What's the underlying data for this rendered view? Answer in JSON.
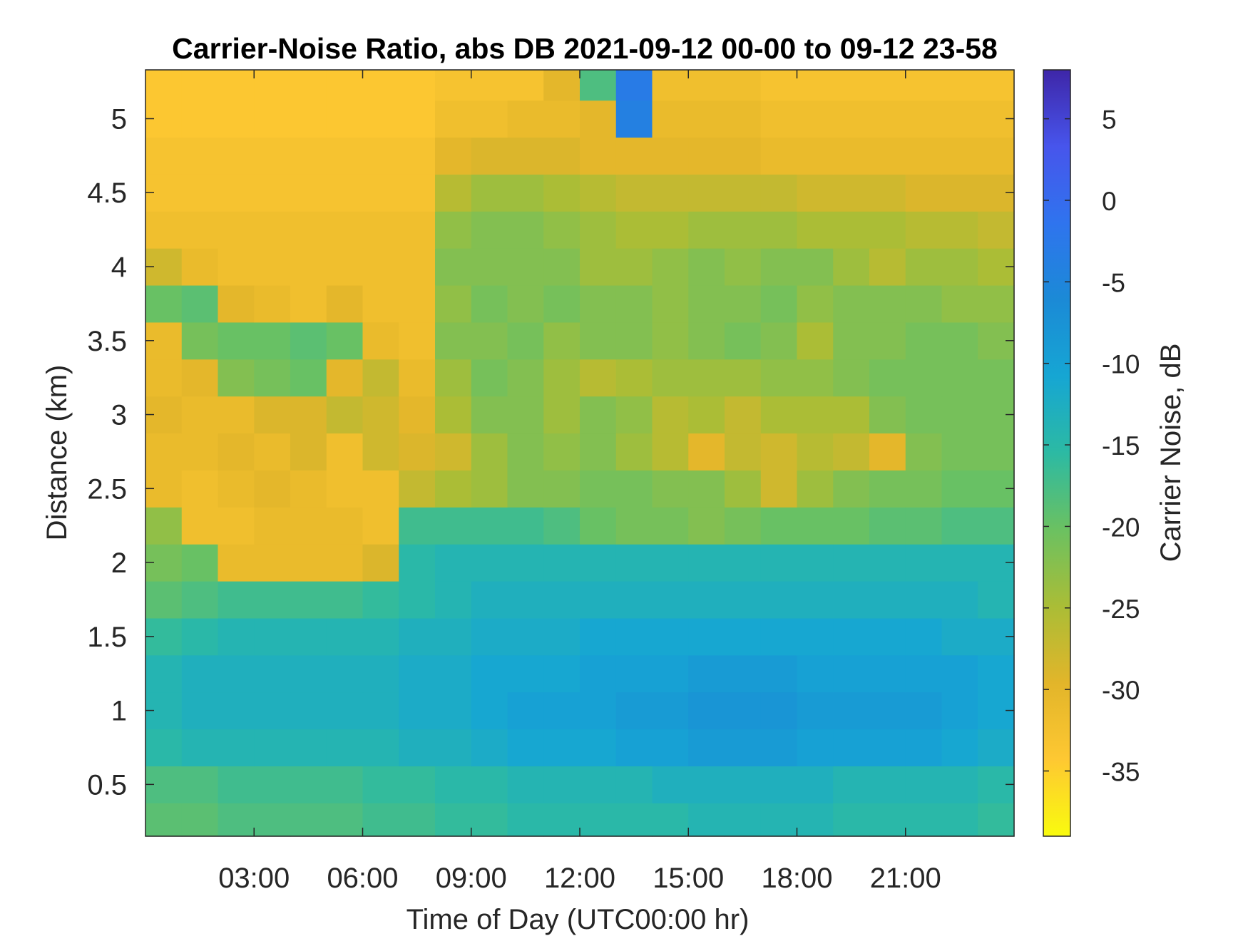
{
  "chart_data": {
    "type": "heatmap",
    "title": "Carrier-Noise Ratio, abs DB 2021-09-12 00-00 to 09-12 23-58",
    "xlabel": "Time of Day (UTC00:00 hr)",
    "ylabel": "Distance (km)",
    "colorbar_label": "Carrier Noise, dB",
    "x_tick_labels": [
      "03:00",
      "06:00",
      "09:00",
      "12:00",
      "15:00",
      "18:00",
      "21:00"
    ],
    "x_ticks_hours": [
      3,
      6,
      9,
      12,
      15,
      18,
      21
    ],
    "xlim_hours": [
      0,
      24
    ],
    "y_ticks": [
      0.5,
      1,
      1.5,
      2,
      2.5,
      3,
      3.5,
      4,
      4.5,
      5
    ],
    "y_tick_labels": [
      "0.5",
      "1",
      "1.5",
      "2",
      "2.5",
      "3",
      "3.5",
      "4",
      "4.5",
      "5"
    ],
    "ylim": [
      0.15,
      5.33
    ],
    "colorbar_ticks": [
      5,
      0,
      -5,
      -10,
      -15,
      -20,
      -25,
      -30,
      -35
    ],
    "colorbar_tick_labels": [
      "5",
      "0",
      "-5",
      "-10",
      "-15",
      "-20",
      "-25",
      "-30",
      "-35"
    ],
    "clim": [
      -39,
      8
    ],
    "colormap": [
      "#f9fb0e",
      "#fec832",
      "#e2b52a",
      "#aabd36",
      "#6bc161",
      "#2cbaa3",
      "#16a6d3",
      "#1b8ad6",
      "#2f74ee",
      "#4755ec",
      "#3e26a8"
    ],
    "grid": false,
    "legend": "none",
    "x_hours": [
      0.5,
      1.5,
      2.5,
      3.5,
      4.5,
      5.5,
      6.5,
      7.5,
      8.5,
      9.5,
      10.5,
      11.5,
      12.5,
      13.5,
      14.5,
      15.5,
      16.5,
      17.5,
      18.5,
      19.5,
      20.5,
      21.5,
      22.5,
      23.5
    ],
    "y_km": [
      0.25,
      0.5,
      0.75,
      1.0,
      1.25,
      1.5,
      1.75,
      2.0,
      2.25,
      2.5,
      2.75,
      3.0,
      3.25,
      3.5,
      3.75,
      4.0,
      4.25,
      4.5,
      4.75,
      5.0,
      5.25
    ],
    "z_db": [
      [
        -19,
        -19,
        -18,
        -18,
        -18,
        -18,
        -17,
        -17,
        -16,
        -16,
        -15,
        -15,
        -15,
        -15,
        -15,
        -14,
        -14,
        -14,
        -14,
        -15,
        -15,
        -15,
        -15,
        -16
      ],
      [
        -18,
        -18,
        -17,
        -17,
        -17,
        -17,
        -16,
        -16,
        -15,
        -15,
        -14,
        -14,
        -14,
        -14,
        -13,
        -13,
        -13,
        -13,
        -13,
        -14,
        -14,
        -14,
        -14,
        -15
      ],
      [
        -15,
        -14,
        -14,
        -14,
        -14,
        -14,
        -14,
        -13,
        -13,
        -12,
        -11,
        -11,
        -11,
        -10,
        -10,
        -9,
        -9,
        -9,
        -10,
        -10,
        -10,
        -10,
        -11,
        -12
      ],
      [
        -14,
        -13,
        -13,
        -13,
        -13,
        -13,
        -13,
        -12,
        -12,
        -11,
        -10,
        -10,
        -10,
        -9,
        -9,
        -8,
        -8,
        -8,
        -9,
        -9,
        -9,
        -9,
        -10,
        -11
      ],
      [
        -14,
        -13,
        -13,
        -13,
        -13,
        -13,
        -13,
        -12,
        -12,
        -11,
        -11,
        -11,
        -10,
        -10,
        -10,
        -9,
        -9,
        -9,
        -10,
        -10,
        -10,
        -10,
        -10,
        -11
      ],
      [
        -16,
        -15,
        -14,
        -14,
        -14,
        -14,
        -14,
        -13,
        -13,
        -12,
        -12,
        -12,
        -11,
        -11,
        -11,
        -11,
        -11,
        -11,
        -11,
        -11,
        -11,
        -11,
        -12,
        -12
      ],
      [
        -19,
        -18,
        -17,
        -17,
        -17,
        -17,
        -16,
        -15,
        -14,
        -13,
        -13,
        -13,
        -13,
        -13,
        -13,
        -13,
        -13,
        -13,
        -13,
        -13,
        -13,
        -13,
        -13,
        -14
      ],
      [
        -21,
        -20,
        -31,
        -31,
        -31,
        -31,
        -29,
        -15,
        -14,
        -14,
        -14,
        -14,
        -14,
        -14,
        -14,
        -14,
        -14,
        -14,
        -14,
        -14,
        -14,
        -14,
        -14,
        -14
      ],
      [
        -23,
        -32,
        -32,
        -31,
        -31,
        -31,
        -32,
        -17,
        -17,
        -17,
        -17,
        -18,
        -20,
        -21,
        -21,
        -22,
        -21,
        -20,
        -20,
        -20,
        -19,
        -19,
        -18,
        -18
      ],
      [
        -31,
        -32,
        -31,
        -30,
        -31,
        -32,
        -32,
        -27,
        -25,
        -24,
        -22,
        -22,
        -21,
        -21,
        -22,
        -22,
        -24,
        -28,
        -24,
        -22,
        -21,
        -21,
        -20,
        -20
      ],
      [
        -31,
        -31,
        -30,
        -31,
        -29,
        -32,
        -28,
        -29,
        -28,
        -24,
        -22,
        -23,
        -22,
        -24,
        -26,
        -30,
        -27,
        -28,
        -26,
        -27,
        -30,
        -22,
        -21,
        -21
      ],
      [
        -30,
        -31,
        -31,
        -29,
        -29,
        -27,
        -28,
        -30,
        -25,
        -22,
        -22,
        -24,
        -22,
        -23,
        -26,
        -25,
        -27,
        -25,
        -25,
        -25,
        -22,
        -21,
        -21,
        -21
      ],
      [
        -31,
        -30,
        -22,
        -21,
        -20,
        -30,
        -27,
        -31,
        -24,
        -21,
        -22,
        -24,
        -26,
        -25,
        -24,
        -24,
        -24,
        -23,
        -23,
        -22,
        -21,
        -21,
        -21,
        -21
      ],
      [
        -31,
        -21,
        -20,
        -20,
        -19,
        -20,
        -31,
        -32,
        -22,
        -22,
        -21,
        -23,
        -22,
        -22,
        -23,
        -22,
        -21,
        -22,
        -25,
        -22,
        -22,
        -21,
        -21,
        -22
      ],
      [
        -20,
        -19,
        -30,
        -31,
        -32,
        -30,
        -32,
        -32,
        -23,
        -21,
        -22,
        -21,
        -22,
        -22,
        -23,
        -22,
        -22,
        -21,
        -23,
        -22,
        -22,
        -22,
        -23,
        -23
      ],
      [
        -28,
        -31,
        -32,
        -32,
        -32,
        -32,
        -32,
        -32,
        -22,
        -22,
        -22,
        -22,
        -24,
        -24,
        -23,
        -22,
        -23,
        -22,
        -22,
        -24,
        -26,
        -24,
        -24,
        -25
      ],
      [
        -32,
        -32,
        -32,
        -32,
        -32,
        -32,
        -32,
        -32,
        -23,
        -22,
        -22,
        -23,
        -24,
        -25,
        -25,
        -24,
        -24,
        -24,
        -25,
        -25,
        -25,
        -26,
        -26,
        -27
      ],
      [
        -33,
        -33,
        -33,
        -33,
        -33,
        -33,
        -33,
        -33,
        -26,
        -24,
        -24,
        -25,
        -26,
        -27,
        -27,
        -27,
        -27,
        -27,
        -28,
        -28,
        -28,
        -29,
        -29,
        -29
      ],
      [
        -33,
        -33,
        -33,
        -33,
        -33,
        -33,
        -33,
        -33,
        -30,
        -29,
        -29,
        -29,
        -30,
        -30,
        -30,
        -30,
        -30,
        -31,
        -31,
        -31,
        -31,
        -31,
        -31,
        -31
      ],
      [
        -34,
        -34,
        -34,
        -34,
        -34,
        -34,
        -34,
        -34,
        -32,
        -32,
        -31,
        -31,
        -30,
        -4,
        -31,
        -31,
        -31,
        -32,
        -32,
        -32,
        -32,
        -32,
        -32,
        -32
      ],
      [
        -34,
        -34,
        -34,
        -34,
        -34,
        -34,
        -34,
        -34,
        -33,
        -33,
        -33,
        -30,
        -18,
        -3,
        -32,
        -32,
        -32,
        -33,
        -33,
        -33,
        -33,
        -33,
        -33,
        -33
      ]
    ]
  }
}
